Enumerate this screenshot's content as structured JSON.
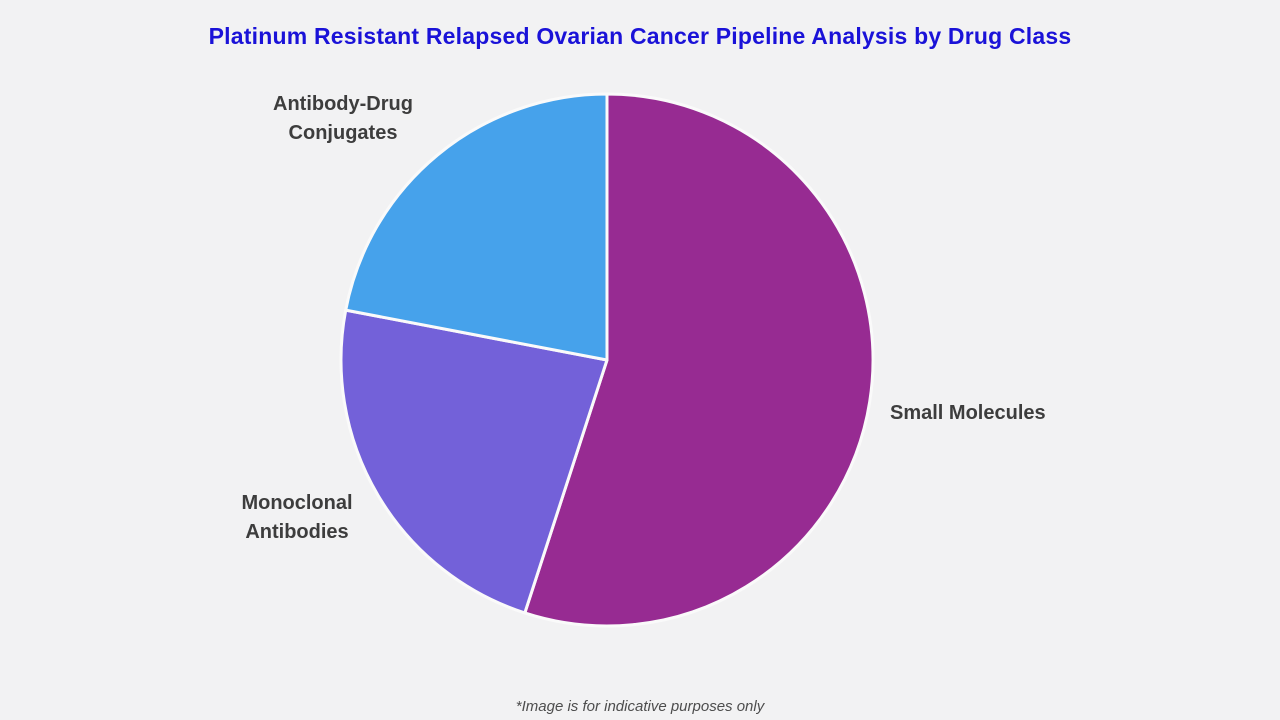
{
  "page": {
    "background_color": "#f2f2f3",
    "title_color": "#1a12d8",
    "label_color": "#3d3d3d",
    "footnote_color": "#4d4d4d",
    "footnote": "*Image is for indicative purposes only"
  },
  "chart_data": {
    "type": "pie",
    "title": "Platinum Resistant Relapsed Ovarian Cancer Pipeline Analysis by Drug Class",
    "start_angle_deg": 0,
    "direction": "clockwise",
    "legend_position": "outside-labels",
    "separator_color": "#fafafa",
    "slices": [
      {
        "label": "Small Molecules",
        "value": 55,
        "color": "#972b92"
      },
      {
        "label": "Monoclonal Antibodies",
        "value": 23,
        "color": "#7361d9"
      },
      {
        "label": "Antibody-Drug Conjugates",
        "value": 22,
        "color": "#46a2eb"
      }
    ]
  }
}
